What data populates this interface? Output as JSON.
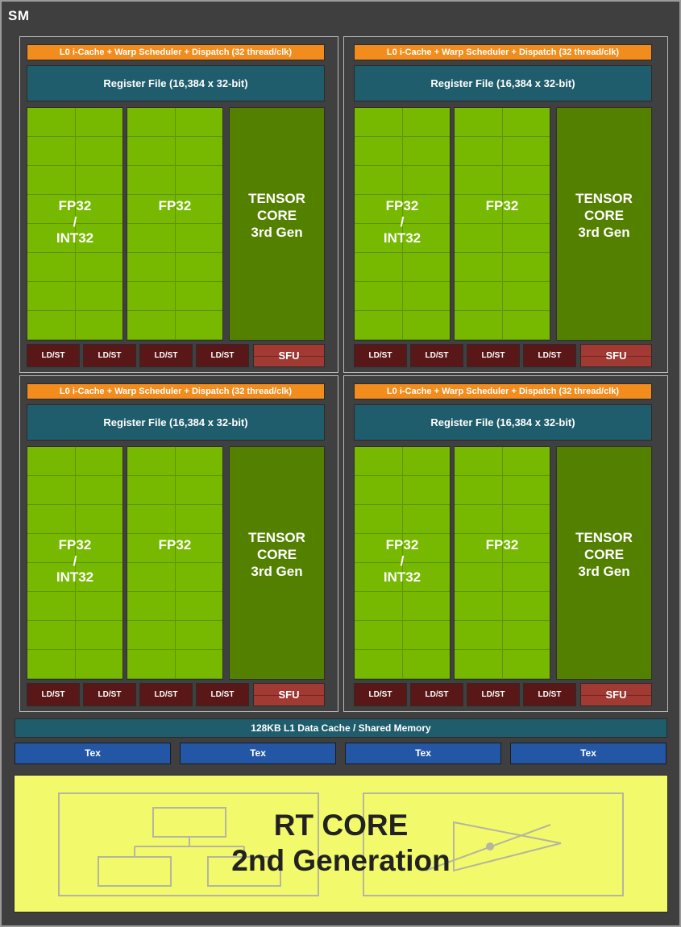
{
  "sm_title": "SM",
  "partitions": [
    {
      "l0_label": "L0 i-Cache + Warp Scheduler + Dispatch (32 thread/clk)",
      "register_file_label": "Register File (16,384 x 32-bit)",
      "fp32_int32": [
        "FP32",
        "/",
        "INT32"
      ],
      "fp32": "FP32",
      "tensor": [
        "TENSOR",
        "CORE",
        "3rd Gen"
      ],
      "ldst": [
        "LD/ST",
        "LD/ST",
        "LD/ST",
        "LD/ST"
      ],
      "sfu": "SFU"
    },
    {
      "l0_label": "L0 i-Cache + Warp Scheduler + Dispatch (32 thread/clk)",
      "register_file_label": "Register File (16,384 x 32-bit)",
      "fp32_int32": [
        "FP32",
        "/",
        "INT32"
      ],
      "fp32": "FP32",
      "tensor": [
        "TENSOR",
        "CORE",
        "3rd Gen"
      ],
      "ldst": [
        "LD/ST",
        "LD/ST",
        "LD/ST",
        "LD/ST"
      ],
      "sfu": "SFU"
    },
    {
      "l0_label": "L0 i-Cache + Warp Scheduler + Dispatch (32 thread/clk)",
      "register_file_label": "Register File (16,384 x 32-bit)",
      "fp32_int32": [
        "FP32",
        "/",
        "INT32"
      ],
      "fp32": "FP32",
      "tensor": [
        "TENSOR",
        "CORE",
        "3rd Gen"
      ],
      "ldst": [
        "LD/ST",
        "LD/ST",
        "LD/ST",
        "LD/ST"
      ],
      "sfu": "SFU"
    },
    {
      "l0_label": "L0 i-Cache + Warp Scheduler + Dispatch (32 thread/clk)",
      "register_file_label": "Register File (16,384 x 32-bit)",
      "fp32_int32": [
        "FP32",
        "/",
        "INT32"
      ],
      "fp32": "FP32",
      "tensor": [
        "TENSOR",
        "CORE",
        "3rd Gen"
      ],
      "ldst": [
        "LD/ST",
        "LD/ST",
        "LD/ST",
        "LD/ST"
      ],
      "sfu": "SFU"
    }
  ],
  "l1_cache_label": "128KB L1 Data Cache / Shared Memory",
  "tex_units": [
    "Tex",
    "Tex",
    "Tex",
    "Tex"
  ],
  "rt_core": {
    "line1": "RT CORE",
    "line2": "2nd Generation"
  },
  "colors": {
    "sm_background": "#3f3f3f",
    "l0_orange": "#f28c1c",
    "register_file_teal": "#1f5c6c",
    "fp32_green": "#76b900",
    "tensor_green": "#548000",
    "ldst_maroon": "#5a1717",
    "sfu_red": "#a23a34",
    "tex_blue": "#2456a6",
    "rt_yellow": "#f2fa6b"
  }
}
